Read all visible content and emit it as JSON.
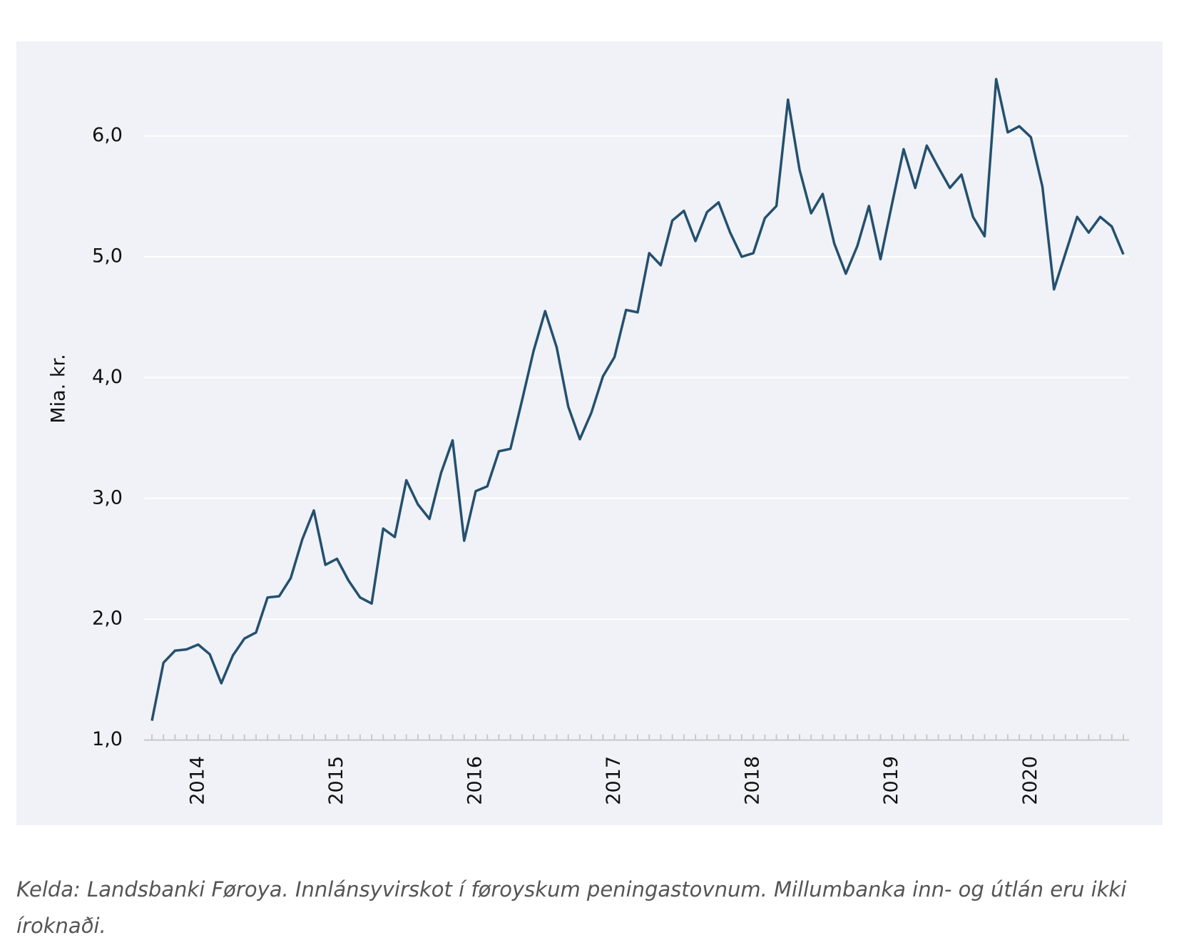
{
  "chart_data": {
    "type": "line",
    "y_label": "Mia. kr.",
    "caption": "Kelda: Landsbanki Føroya. Innlánsyvirskot í føroyskum peningastovnum. Millumbanka inn- og útlán eru ikki íroknaði.",
    "categories": [
      null,
      null,
      null,
      null,
      "2014",
      null,
      null,
      null,
      null,
      null,
      null,
      null,
      null,
      null,
      null,
      null,
      "2015",
      null,
      null,
      null,
      null,
      null,
      null,
      null,
      null,
      null,
      null,
      null,
      "2016",
      null,
      null,
      null,
      null,
      null,
      null,
      null,
      null,
      null,
      null,
      null,
      "2017",
      null,
      null,
      null,
      null,
      null,
      null,
      null,
      null,
      null,
      null,
      null,
      "2018",
      null,
      null,
      null,
      null,
      null,
      null,
      null,
      null,
      null,
      null,
      null,
      "2019",
      null,
      null,
      null,
      null,
      null,
      null,
      null,
      null,
      null,
      null,
      null,
      "2020",
      null,
      null,
      null,
      null,
      null,
      null,
      null,
      null
    ],
    "series": [
      {
        "color": "#24506f",
        "values": [
          1.16,
          1.64,
          1.74,
          1.75,
          1.79,
          1.71,
          1.47,
          1.7,
          1.84,
          1.89,
          2.18,
          2.19,
          2.34,
          2.66,
          2.9,
          2.45,
          2.5,
          2.32,
          2.18,
          2.13,
          2.75,
          2.68,
          3.15,
          2.95,
          2.83,
          3.21,
          3.48,
          2.65,
          3.06,
          3.1,
          3.39,
          3.41,
          3.81,
          4.22,
          4.55,
          4.25,
          3.76,
          3.49,
          3.71,
          4.01,
          4.17,
          4.56,
          4.54,
          5.03,
          4.93,
          5.3,
          5.38,
          5.13,
          5.37,
          5.45,
          5.2,
          5.0,
          5.03,
          5.32,
          5.42,
          6.3,
          5.72,
          5.36,
          5.52,
          5.11,
          4.86,
          5.09,
          5.42,
          4.98,
          5.44,
          5.89,
          5.57,
          5.92,
          5.74,
          5.57,
          5.68,
          5.33,
          5.17,
          6.47,
          6.03,
          6.08,
          5.99,
          5.58,
          4.73,
          5.03,
          5.33,
          5.2,
          5.33,
          5.25,
          5.02
        ]
      }
    ],
    "ylim": [
      1,
      6.5
    ],
    "yticks": [
      {
        "value": 1,
        "label": "1,0"
      },
      {
        "value": 2,
        "label": "2,0"
      },
      {
        "value": 3,
        "label": "3,0"
      },
      {
        "value": 4,
        "label": "4,0"
      },
      {
        "value": 5,
        "label": "5,0"
      },
      {
        "value": 6,
        "label": "6,0"
      }
    ],
    "grid": true
  }
}
